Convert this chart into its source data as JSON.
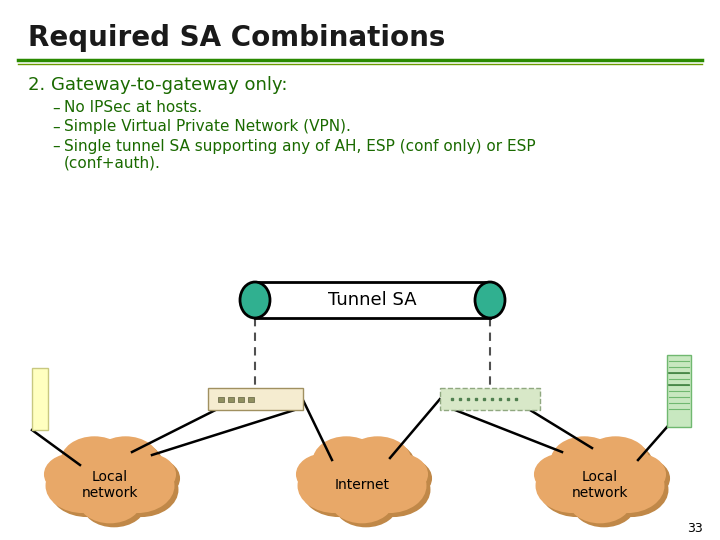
{
  "title": "Required SA Combinations",
  "bg_color": "#ffffff",
  "title_color": "#1a1a1a",
  "title_fontsize": 20,
  "green_line_color": "#2a8a00",
  "olive_line_color": "#6a9a00",
  "heading": "2. Gateway-to-gateway only:",
  "heading_color": "#1a6a00",
  "heading_fontsize": 13,
  "bullet_color": "#1a6a00",
  "bullet_fontsize": 11,
  "tunnel_label": "Tunnel SA",
  "tunnel_color": "#ffffff",
  "tunnel_border": "#000000",
  "tunnel_end_color": "#30b090",
  "cloud_color": "#e8a868",
  "cloud_shadow_color": "#c08848",
  "local_network_text": "Local\nnetwork",
  "internet_text": "Internet",
  "gateway_left_color": "#f5ecd0",
  "gateway_left_border": "#a09060",
  "gateway_right_color": "#d8e8c8",
  "gateway_right_border": "#90a880",
  "host_left_color": "#ffffc0",
  "host_left_border": "#c8c880",
  "server_right_color": "#c8e8c0",
  "server_right_border": "#70b870",
  "server_line_color": "#70b870",
  "line_color": "#000000",
  "dashed_line_color": "#505050",
  "slide_number": "33"
}
